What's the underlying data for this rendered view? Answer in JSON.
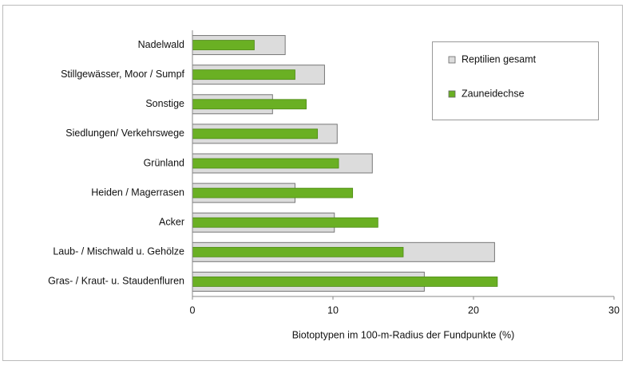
{
  "chart_data": {
    "type": "bar",
    "orientation": "horizontal",
    "x_axis_label": "Biotoptypen im 100-m-Radius der Fundpunkte (%)",
    "categories": [
      "Nadelwald",
      "Stillgewässer, Moor / Sumpf",
      "Sonstige",
      "Siedlungen/ Verkehrswege",
      "Grünland",
      "Heiden / Magerrasen",
      "Acker",
      "Laub- / Mischwald u. Gehölze",
      "Gras- / Kraut- u. Staudenfluren"
    ],
    "series": [
      {
        "name": "Reptilien gesamt",
        "color": "#dcdcdc",
        "values": [
          6.6,
          9.4,
          5.7,
          10.3,
          12.8,
          7.3,
          10.1,
          21.5,
          16.5
        ]
      },
      {
        "name": "Zauneidechse",
        "color": "#6ab023",
        "values": [
          4.4,
          7.3,
          8.1,
          8.9,
          10.4,
          11.4,
          13.2,
          15.0,
          21.7
        ]
      }
    ],
    "xlim": [
      0,
      30
    ],
    "xticks": [
      0,
      10,
      20,
      30
    ],
    "legend": "upper right"
  }
}
